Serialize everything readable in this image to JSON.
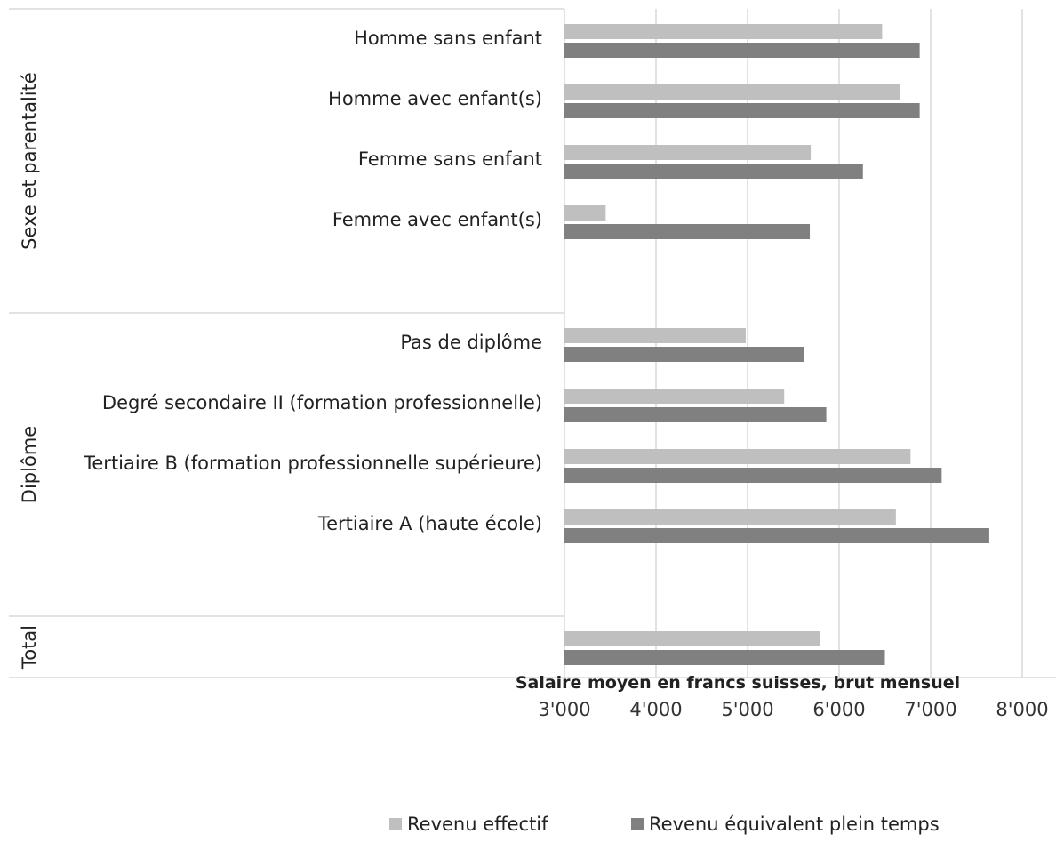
{
  "chart_data": {
    "type": "bar",
    "orientation": "horizontal",
    "xlabel": "Salaire moyen en francs suisses, brut mensuel",
    "xlim": [
      3000,
      8000
    ],
    "x_ticks": [
      "3'000",
      "4'000",
      "5'000",
      "6'000",
      "7'000",
      "8'000"
    ],
    "grid": "vertical",
    "legend_position": "bottom",
    "groups": [
      {
        "label": "Sexe et parentalité",
        "categories": [
          "Homme sans enfant",
          "Homme avec enfant(s)",
          "Femme sans enfant",
          "Femme avec enfant(s)"
        ]
      },
      {
        "label": "Diplôme",
        "categories": [
          "Pas de diplôme",
          "Degré secondaire II (formation professionnelle)",
          "Tertiaire B (formation professionnelle supérieure)",
          "Tertiaire A (haute école)"
        ]
      },
      {
        "label": "Total",
        "categories": [
          ""
        ]
      }
    ],
    "series": [
      {
        "name": "Revenu effectif",
        "color": "#bfbfbf",
        "values": [
          6470,
          6670,
          5690,
          3450,
          4980,
          5400,
          6780,
          6620,
          5790
        ]
      },
      {
        "name": "Revenu équivalent plein temps",
        "color": "#808080",
        "values": [
          6880,
          6880,
          6260,
          5680,
          5620,
          5860,
          7120,
          7640,
          6500
        ]
      }
    ]
  }
}
